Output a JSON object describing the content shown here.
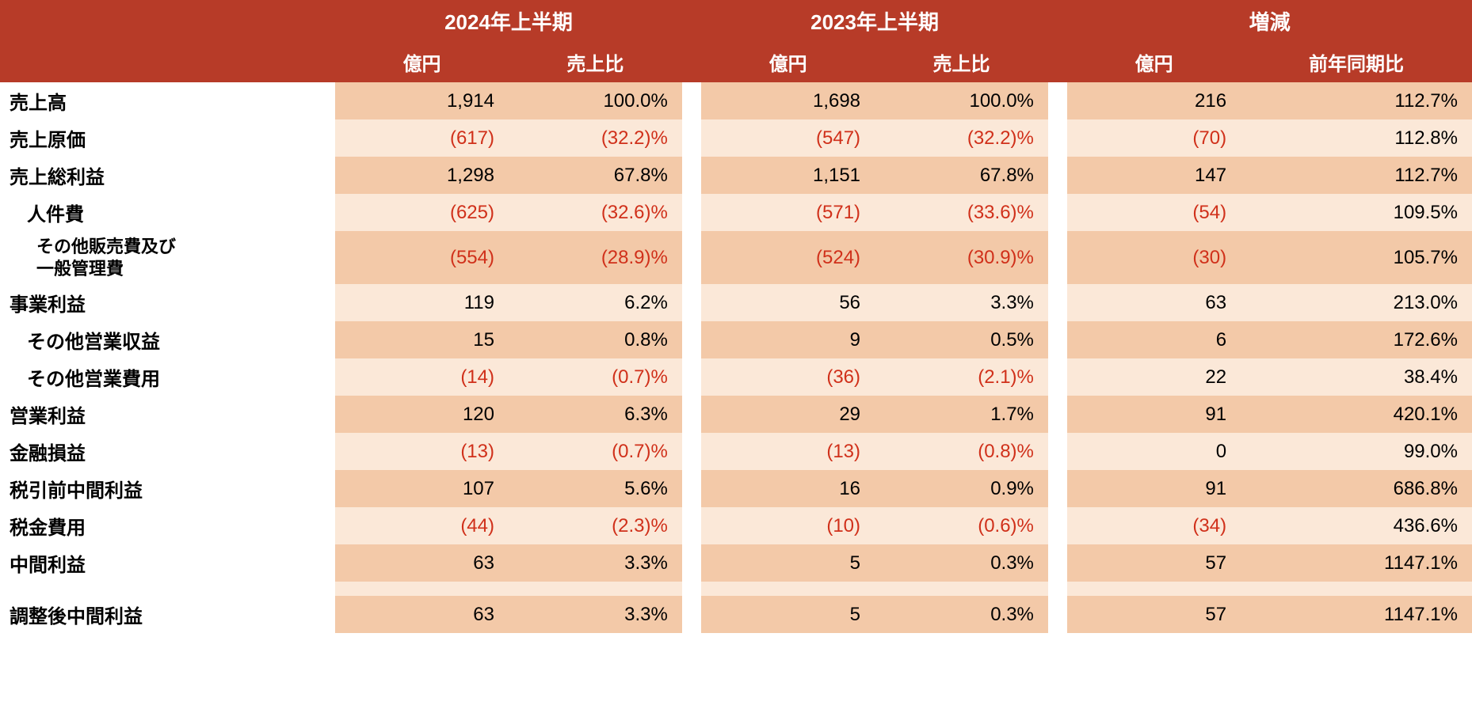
{
  "colors": {
    "header_bg": "#b73b28",
    "header_text": "#ffffff",
    "row_shade": "#f3c9a8",
    "row_noshade": "#fbe8d8",
    "text": "#000000",
    "negative": "#d0301a"
  },
  "header": {
    "groups": [
      "2024年上半期",
      "2023年上半期",
      "増減"
    ],
    "sub_2024": [
      "億円",
      "売上比"
    ],
    "sub_2023": [
      "億円",
      "売上比"
    ],
    "sub_diff": [
      "億円",
      "前年同期比"
    ]
  },
  "rows": [
    {
      "label": "売上高",
      "indent": 0,
      "shade": true,
      "v24_amt": "1,914",
      "v24_pct": "100.0%",
      "v23_amt": "1,698",
      "v23_pct": "100.0%",
      "d_amt": "216",
      "d_pct": "112.7%",
      "neg": {
        "v24_amt": false,
        "v24_pct": false,
        "v23_amt": false,
        "v23_pct": false,
        "d_amt": false,
        "d_pct": false
      }
    },
    {
      "label": "売上原価",
      "indent": 0,
      "shade": false,
      "v24_amt": "(617)",
      "v24_pct": "(32.2)%",
      "v23_amt": "(547)",
      "v23_pct": "(32.2)%",
      "d_amt": "(70)",
      "d_pct": "112.8%",
      "neg": {
        "v24_amt": true,
        "v24_pct": true,
        "v23_amt": true,
        "v23_pct": true,
        "d_amt": true,
        "d_pct": false
      }
    },
    {
      "label": "売上総利益",
      "indent": 0,
      "shade": true,
      "v24_amt": "1,298",
      "v24_pct": "67.8%",
      "v23_amt": "1,151",
      "v23_pct": "67.8%",
      "d_amt": "147",
      "d_pct": "112.7%",
      "neg": {
        "v24_amt": false,
        "v24_pct": false,
        "v23_amt": false,
        "v23_pct": false,
        "d_amt": false,
        "d_pct": false
      }
    },
    {
      "label": "人件費",
      "indent": 1,
      "shade": false,
      "v24_amt": "(625)",
      "v24_pct": "(32.6)%",
      "v23_amt": "(571)",
      "v23_pct": "(33.6)%",
      "d_amt": "(54)",
      "d_pct": "109.5%",
      "neg": {
        "v24_amt": true,
        "v24_pct": true,
        "v23_amt": true,
        "v23_pct": true,
        "d_amt": true,
        "d_pct": false
      }
    },
    {
      "label": "その他販売費及び\n一般管理費",
      "indent": 2,
      "shade": true,
      "v24_amt": "(554)",
      "v24_pct": "(28.9)%",
      "v23_amt": "(524)",
      "v23_pct": "(30.9)%",
      "d_amt": "(30)",
      "d_pct": "105.7%",
      "neg": {
        "v24_amt": true,
        "v24_pct": true,
        "v23_amt": true,
        "v23_pct": true,
        "d_amt": true,
        "d_pct": false
      }
    },
    {
      "label": "事業利益",
      "indent": 0,
      "shade": false,
      "v24_amt": "119",
      "v24_pct": "6.2%",
      "v23_amt": "56",
      "v23_pct": "3.3%",
      "d_amt": "63",
      "d_pct": "213.0%",
      "neg": {
        "v24_amt": false,
        "v24_pct": false,
        "v23_amt": false,
        "v23_pct": false,
        "d_amt": false,
        "d_pct": false
      }
    },
    {
      "label": "その他営業収益",
      "indent": 1,
      "shade": true,
      "v24_amt": "15",
      "v24_pct": "0.8%",
      "v23_amt": "9",
      "v23_pct": "0.5%",
      "d_amt": "6",
      "d_pct": "172.6%",
      "neg": {
        "v24_amt": false,
        "v24_pct": false,
        "v23_amt": false,
        "v23_pct": false,
        "d_amt": false,
        "d_pct": false
      }
    },
    {
      "label": "その他営業費用",
      "indent": 1,
      "shade": false,
      "v24_amt": "(14)",
      "v24_pct": "(0.7)%",
      "v23_amt": "(36)",
      "v23_pct": "(2.1)%",
      "d_amt": "22",
      "d_pct": "38.4%",
      "neg": {
        "v24_amt": true,
        "v24_pct": true,
        "v23_amt": true,
        "v23_pct": true,
        "d_amt": false,
        "d_pct": false
      }
    },
    {
      "label": "営業利益",
      "indent": 0,
      "shade": true,
      "v24_amt": "120",
      "v24_pct": "6.3%",
      "v23_amt": "29",
      "v23_pct": "1.7%",
      "d_amt": "91",
      "d_pct": "420.1%",
      "neg": {
        "v24_amt": false,
        "v24_pct": false,
        "v23_amt": false,
        "v23_pct": false,
        "d_amt": false,
        "d_pct": false
      }
    },
    {
      "label": "金融損益",
      "indent": 0,
      "shade": false,
      "v24_amt": "(13)",
      "v24_pct": "(0.7)%",
      "v23_amt": "(13)",
      "v23_pct": "(0.8)%",
      "d_amt": "0",
      "d_pct": "99.0%",
      "neg": {
        "v24_amt": true,
        "v24_pct": true,
        "v23_amt": true,
        "v23_pct": true,
        "d_amt": false,
        "d_pct": false
      }
    },
    {
      "label": "税引前中間利益",
      "indent": 0,
      "shade": true,
      "v24_amt": "107",
      "v24_pct": "5.6%",
      "v23_amt": "16",
      "v23_pct": "0.9%",
      "d_amt": "91",
      "d_pct": "686.8%",
      "neg": {
        "v24_amt": false,
        "v24_pct": false,
        "v23_amt": false,
        "v23_pct": false,
        "d_amt": false,
        "d_pct": false
      }
    },
    {
      "label": "税金費用",
      "indent": 0,
      "shade": false,
      "v24_amt": "(44)",
      "v24_pct": "(2.3)%",
      "v23_amt": "(10)",
      "v23_pct": "(0.6)%",
      "d_amt": "(34)",
      "d_pct": "436.6%",
      "neg": {
        "v24_amt": true,
        "v24_pct": true,
        "v23_amt": true,
        "v23_pct": true,
        "d_amt": true,
        "d_pct": false
      }
    },
    {
      "label": "中間利益",
      "indent": 0,
      "shade": true,
      "v24_amt": "63",
      "v24_pct": "3.3%",
      "v23_amt": "5",
      "v23_pct": "0.3%",
      "d_amt": "57",
      "d_pct": "1147.1%",
      "neg": {
        "v24_amt": false,
        "v24_pct": false,
        "v23_amt": false,
        "v23_pct": false,
        "d_amt": false,
        "d_pct": false
      }
    },
    {
      "spacer": true
    },
    {
      "label": "調整後中間利益",
      "indent": 0,
      "shade": true,
      "v24_amt": "63",
      "v24_pct": "3.3%",
      "v23_amt": "5",
      "v23_pct": "0.3%",
      "d_amt": "57",
      "d_pct": "1147.1%",
      "neg": {
        "v24_amt": false,
        "v24_pct": false,
        "v23_amt": false,
        "v23_pct": false,
        "d_amt": false,
        "d_pct": false
      }
    }
  ]
}
